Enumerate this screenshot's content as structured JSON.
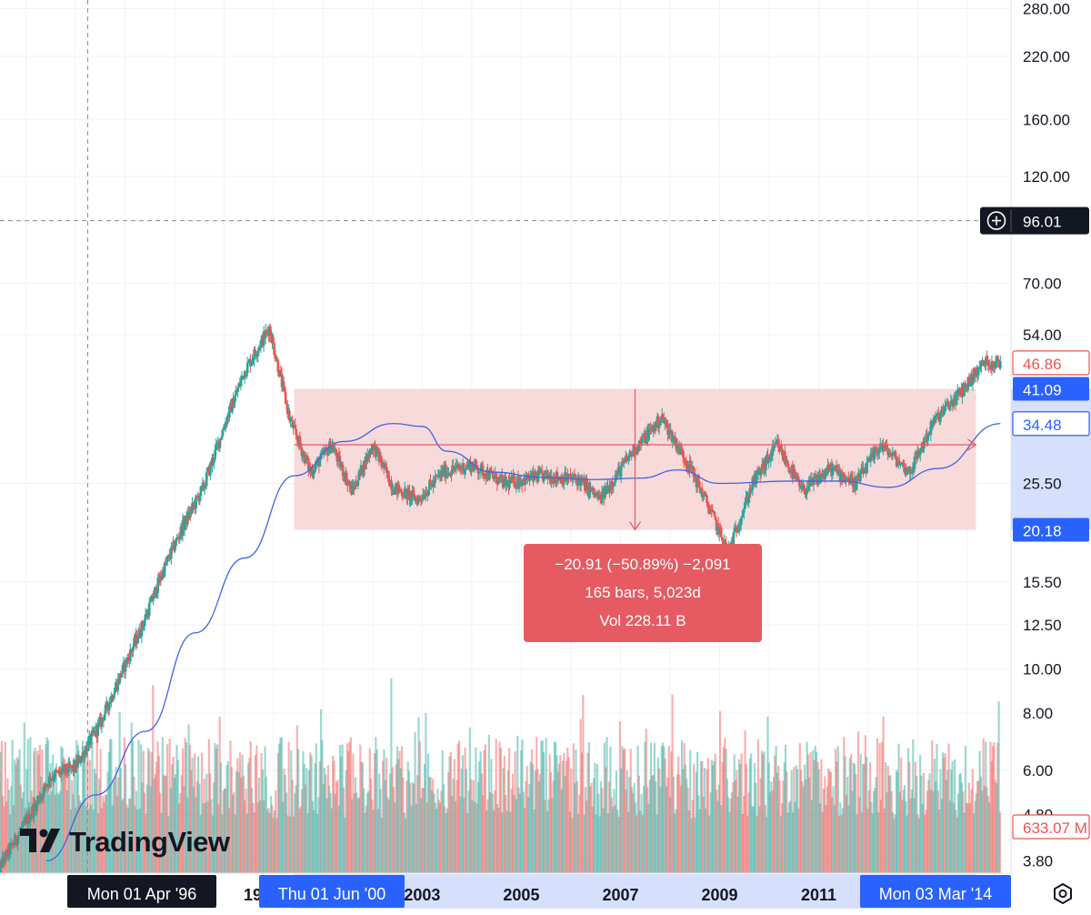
{
  "chart_data": {
    "type": "candlestick",
    "scale": "log",
    "price_axis": {
      "ticks": [
        "280.00",
        "220.00",
        "160.00",
        "120.00",
        "70.00",
        "54.00",
        "25.50",
        "15.50",
        "12.50",
        "10.00",
        "8.00",
        "6.00",
        "4.80",
        "3.80"
      ],
      "badges": {
        "crosshair": "96.01",
        "last_price": "46.86",
        "range_top": "41.09",
        "moving_average": "34.48",
        "range_bottom": "20.18",
        "volume": "633.07 M"
      }
    },
    "time_axis": {
      "ticks": [
        "2003",
        "2005",
        "2007",
        "2009",
        "2011"
      ],
      "partial_tick": "19",
      "crosshair_label": "Mon 01 Apr '96",
      "range_start_label": "Thu 01 Jun '00",
      "range_end_label": "Mon 03 Mar '14"
    },
    "crosshair": {
      "date": "1996-04-01",
      "price": 96.01
    },
    "measure_range": {
      "start_date": "2000-06-01",
      "end_date": "2014-03-03",
      "top_price": 41.09,
      "bottom_price": 20.18
    },
    "close_series": [
      {
        "date": "1994-06",
        "close": 3.6
      },
      {
        "date": "1995-01",
        "close": 4.6
      },
      {
        "date": "1995-07",
        "close": 5.8
      },
      {
        "date": "1996-01",
        "close": 6.1
      },
      {
        "date": "1996-07",
        "close": 7.6
      },
      {
        "date": "1997-01",
        "close": 10.2
      },
      {
        "date": "1997-05",
        "close": 12.3
      },
      {
        "date": "1997-10",
        "close": 16.2
      },
      {
        "date": "1998-03",
        "close": 20.5
      },
      {
        "date": "1998-08",
        "close": 25.0
      },
      {
        "date": "1999-01",
        "close": 34.0
      },
      {
        "date": "1999-06",
        "close": 45.0
      },
      {
        "date": "1999-12",
        "close": 56.0
      },
      {
        "date": "2000-05",
        "close": 35.0
      },
      {
        "date": "2000-10",
        "close": 27.0
      },
      {
        "date": "2001-03",
        "close": 31.0
      },
      {
        "date": "2001-08",
        "close": 24.5
      },
      {
        "date": "2002-01",
        "close": 31.0
      },
      {
        "date": "2002-06",
        "close": 25.0
      },
      {
        "date": "2002-12",
        "close": 23.5
      },
      {
        "date": "2003-06",
        "close": 27.0
      },
      {
        "date": "2004-01",
        "close": 28.0
      },
      {
        "date": "2004-09",
        "close": 25.5
      },
      {
        "date": "2005-06",
        "close": 26.5
      },
      {
        "date": "2006-03",
        "close": 26.0
      },
      {
        "date": "2006-08",
        "close": 23.5
      },
      {
        "date": "2007-04",
        "close": 30.0
      },
      {
        "date": "2007-11",
        "close": 35.5
      },
      {
        "date": "2008-06",
        "close": 27.5
      },
      {
        "date": "2008-11",
        "close": 22.0
      },
      {
        "date": "2009-03",
        "close": 18.0
      },
      {
        "date": "2009-09",
        "close": 25.5
      },
      {
        "date": "2010-03",
        "close": 31.0
      },
      {
        "date": "2010-09",
        "close": 24.5
      },
      {
        "date": "2011-04",
        "close": 27.5
      },
      {
        "date": "2011-10",
        "close": 25.5
      },
      {
        "date": "2012-04",
        "close": 31.0
      },
      {
        "date": "2012-11",
        "close": 27.0
      },
      {
        "date": "2013-05",
        "close": 35.0
      },
      {
        "date": "2013-11",
        "close": 40.0
      },
      {
        "date": "2014-05",
        "close": 47.0
      },
      {
        "date": "2014-09",
        "close": 46.86
      }
    ],
    "moving_average": [
      {
        "date": "1995-06",
        "value": 3.8
      },
      {
        "date": "1996-06",
        "value": 5.3
      },
      {
        "date": "1997-06",
        "value": 7.3
      },
      {
        "date": "1998-06",
        "value": 12.0
      },
      {
        "date": "1999-06",
        "value": 17.5
      },
      {
        "date": "2000-06",
        "value": 26.5
      },
      {
        "date": "2001-06",
        "value": 31.5
      },
      {
        "date": "2002-06",
        "value": 34.5
      },
      {
        "date": "2003-01",
        "value": 34.0
      },
      {
        "date": "2003-07",
        "value": 30.0
      },
      {
        "date": "2004-06",
        "value": 27.0
      },
      {
        "date": "2005-06",
        "value": 26.3
      },
      {
        "date": "2006-06",
        "value": 26.0
      },
      {
        "date": "2007-06",
        "value": 26.2
      },
      {
        "date": "2008-03",
        "value": 27.3
      },
      {
        "date": "2009-01",
        "value": 25.5
      },
      {
        "date": "2010-06",
        "value": 25.8
      },
      {
        "date": "2011-06",
        "value": 25.8
      },
      {
        "date": "2012-06",
        "value": 25.0
      },
      {
        "date": "2013-06",
        "value": 27.5
      },
      {
        "date": "2014-09",
        "value": 34.48
      }
    ]
  },
  "measure_tooltip": {
    "line1": "−20.91 (−50.89%) −2,091",
    "line2": "165 bars, 5,023d",
    "line3": "Vol 228.11 B"
  },
  "branding": {
    "logo_text": "TradingView"
  },
  "colors": {
    "up": "#26a69a",
    "down": "#ef5350",
    "moving_average": "#3d66e0",
    "range_fill": "#f7d3d5",
    "range_line": "#e65a62",
    "axis_highlight": "#d6e0fc",
    "accent_blue": "#2962ff"
  },
  "icons": {
    "crosshair_add": "plus-circle-icon",
    "settings": "settings-gear-icon"
  }
}
